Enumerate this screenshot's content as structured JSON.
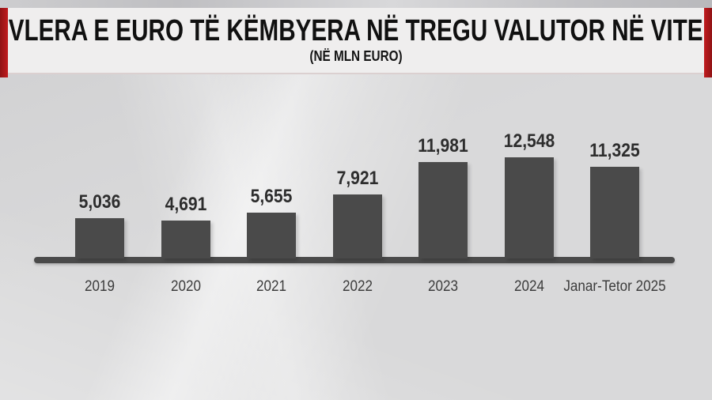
{
  "header": {
    "title": "VLERA E EURO TË KËMBYERA NË TREGU VALUTOR NË VITE",
    "subtitle": "(NË MLN EURO)"
  },
  "chart_data": {
    "type": "bar",
    "title": "VLERA E EURO TË KËMBYERA NË TREGU VALUTOR NË VITE",
    "subtitle": "(NË MLN EURO)",
    "categories": [
      "2019",
      "2020",
      "2021",
      "2022",
      "2023",
      "2024",
      "Janar-Tetor 2025"
    ],
    "values": [
      5036,
      4691,
      5655,
      7921,
      11981,
      12548,
      11325
    ],
    "value_labels": [
      "5,036",
      "4,691",
      "5,655",
      "7,921",
      "11,981",
      "12,548",
      "11,325"
    ],
    "xlabel": "",
    "ylabel": "",
    "ylim": [
      0,
      13000
    ],
    "grid": false,
    "legend": null,
    "data_labels_position": "above-bar"
  },
  "colors": {
    "accent_red": "#c11b1e",
    "bar": "#4a4a4a",
    "axis": "#4a4a4a",
    "header_bg": "#efeeee",
    "page_bg": "#d9d9da",
    "title_text": "#101010",
    "value_text": "#2d2d2d",
    "category_text": "#3c3c3c"
  }
}
